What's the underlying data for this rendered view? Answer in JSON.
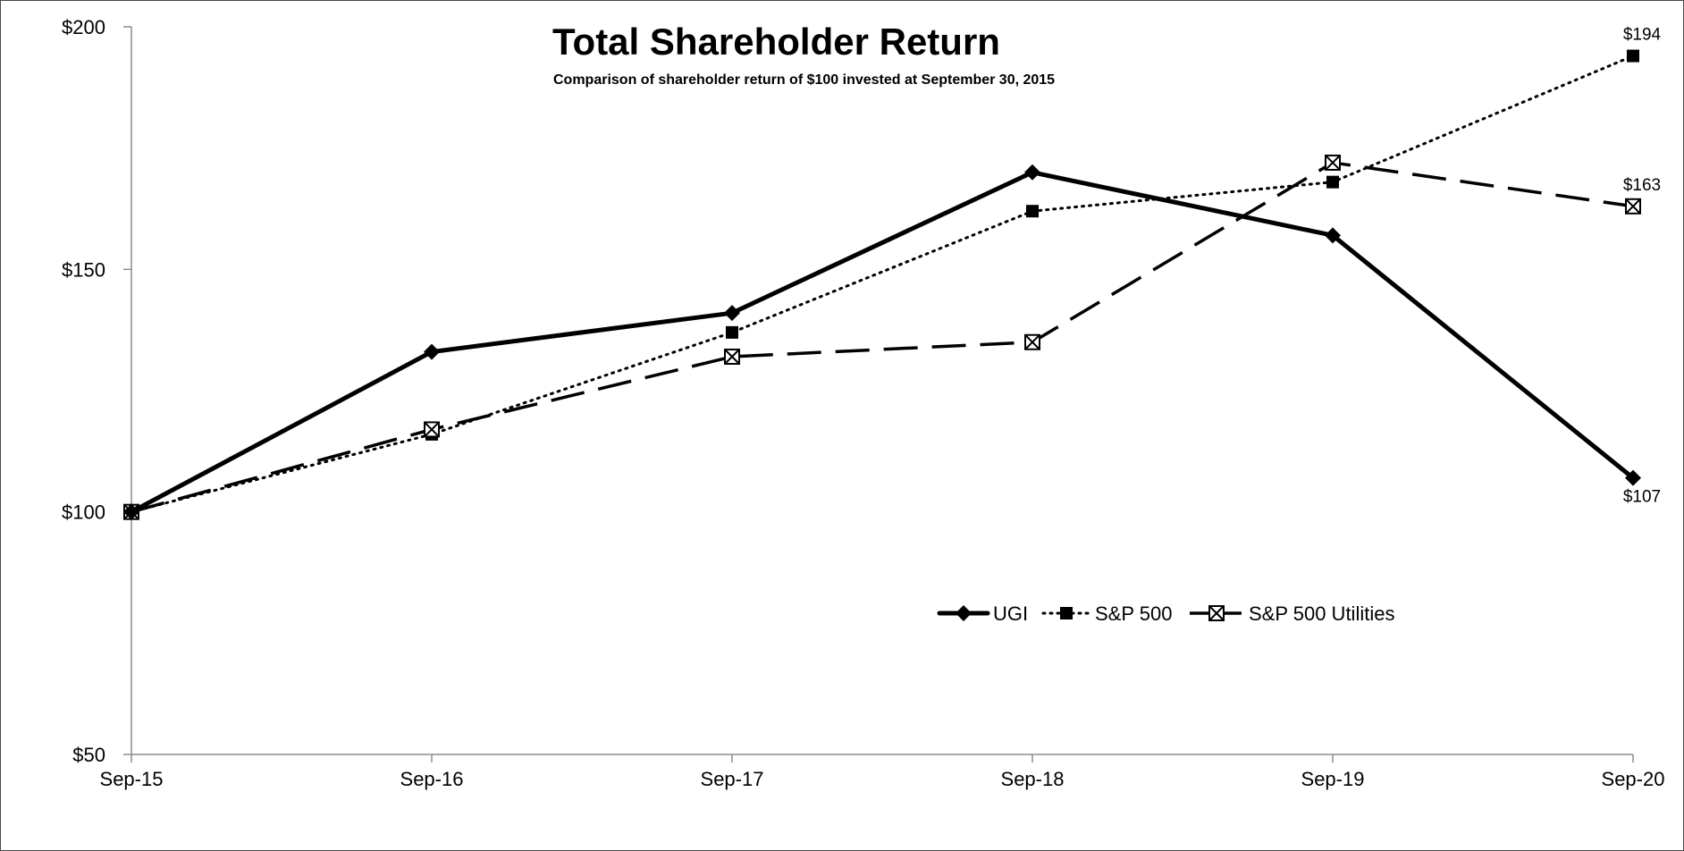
{
  "chart_data": {
    "type": "line",
    "title": "Total Shareholder Return",
    "subtitle": "Comparison of shareholder return of $100 invested at September 30, 2015",
    "xlabel": "",
    "ylabel": "",
    "categories": [
      "Sep-15",
      "Sep-16",
      "Sep-17",
      "Sep-18",
      "Sep-19",
      "Sep-20"
    ],
    "ylim": [
      50,
      200
    ],
    "yticks": [
      50,
      100,
      150,
      200
    ],
    "ytick_labels": [
      "$50",
      "$100",
      "$150",
      "$200"
    ],
    "grid": false,
    "legend_position": "bottom-right inside plot",
    "series": [
      {
        "name": "UGI",
        "values": [
          100,
          133,
          141,
          170,
          157,
          107
        ],
        "line_style": "solid",
        "marker": "diamond",
        "color": "#000000",
        "end_label": "$107"
      },
      {
        "name": "S&P 500",
        "values": [
          100,
          116,
          137,
          162,
          168,
          194
        ],
        "line_style": "dotted",
        "marker": "square",
        "color": "#000000",
        "end_label": "$194"
      },
      {
        "name": "S&P 500 Utilities",
        "values": [
          100,
          117,
          132,
          135,
          172,
          163
        ],
        "line_style": "dashed",
        "marker": "crossed-square",
        "color": "#000000",
        "end_label": "$163"
      }
    ]
  }
}
